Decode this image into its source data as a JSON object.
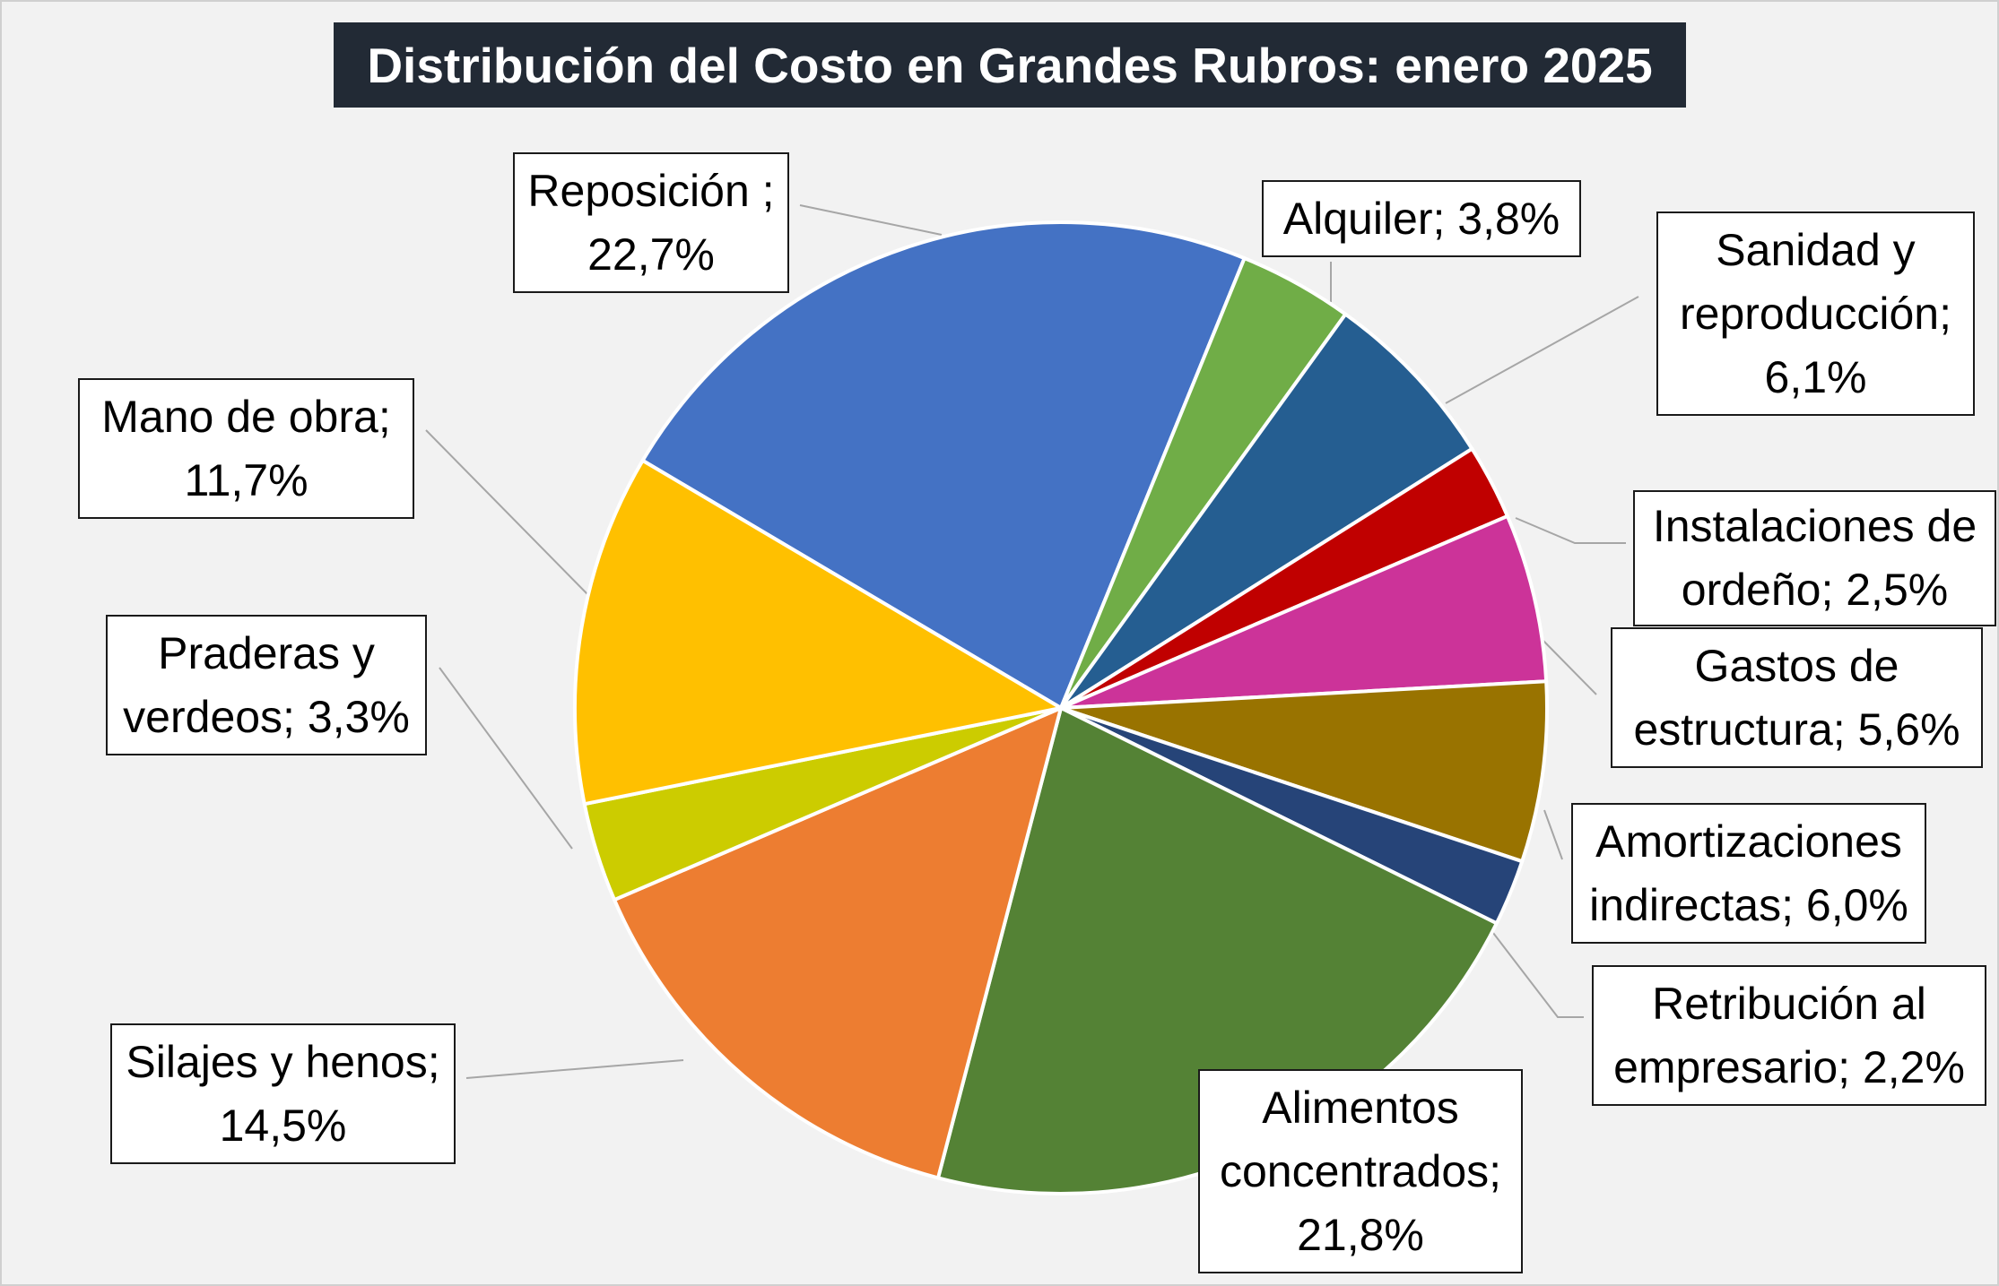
{
  "chart_data": {
    "type": "pie",
    "title": "Distribución del Costo en Grandes Rubros: enero 2025",
    "slices": [
      {
        "name": "Reposición",
        "value": 22.7,
        "color": "#4472c4",
        "label_lines": [
          "Reposición ;",
          "22,7%"
        ]
      },
      {
        "name": "Alquiler",
        "value": 3.8,
        "color": "#70ad47",
        "label_lines": [
          "Alquiler; 3,8%"
        ]
      },
      {
        "name": "Sanidad y reproducción",
        "value": 6.1,
        "color": "#255e91",
        "label_lines": [
          "Sanidad y",
          "reproducción;",
          "6,1%"
        ]
      },
      {
        "name": "Instalaciones de ordeño",
        "value": 2.5,
        "color": "#c00000",
        "label_lines": [
          "Instalaciones de",
          "ordeño; 2,5%"
        ]
      },
      {
        "name": "Gastos de estructura",
        "value": 5.6,
        "color": "#cc3399",
        "label_lines": [
          "Gastos de",
          "estructura; 5,6%"
        ]
      },
      {
        "name": "Amortizaciones indirectas",
        "value": 6.0,
        "color": "#997300",
        "label_lines": [
          "Amortizaciones",
          "indirectas; 6,0%"
        ]
      },
      {
        "name": "Retribución al empresario",
        "value": 2.2,
        "color": "#264478",
        "label_lines": [
          "Retribución al",
          "empresario; 2,2%"
        ]
      },
      {
        "name": "Alimentos concentrados",
        "value": 21.8,
        "color": "#548235",
        "label_lines": [
          "Alimentos",
          "concentrados;",
          "21,8%"
        ]
      },
      {
        "name": "Silajes y henos",
        "value": 14.5,
        "color": "#ed7d31",
        "label_lines": [
          "Silajes y henos;",
          "14,5%"
        ]
      },
      {
        "name": "Praderas y verdeos",
        "value": 3.3,
        "color": "#cccc00",
        "label_lines": [
          "Praderas y",
          "verdeos; 3,3%"
        ]
      },
      {
        "name": "Mano de obra",
        "value": 11.7,
        "color": "#ffc000",
        "label_lines": [
          "Mano de obra;",
          "11,7%"
        ]
      }
    ]
  }
}
